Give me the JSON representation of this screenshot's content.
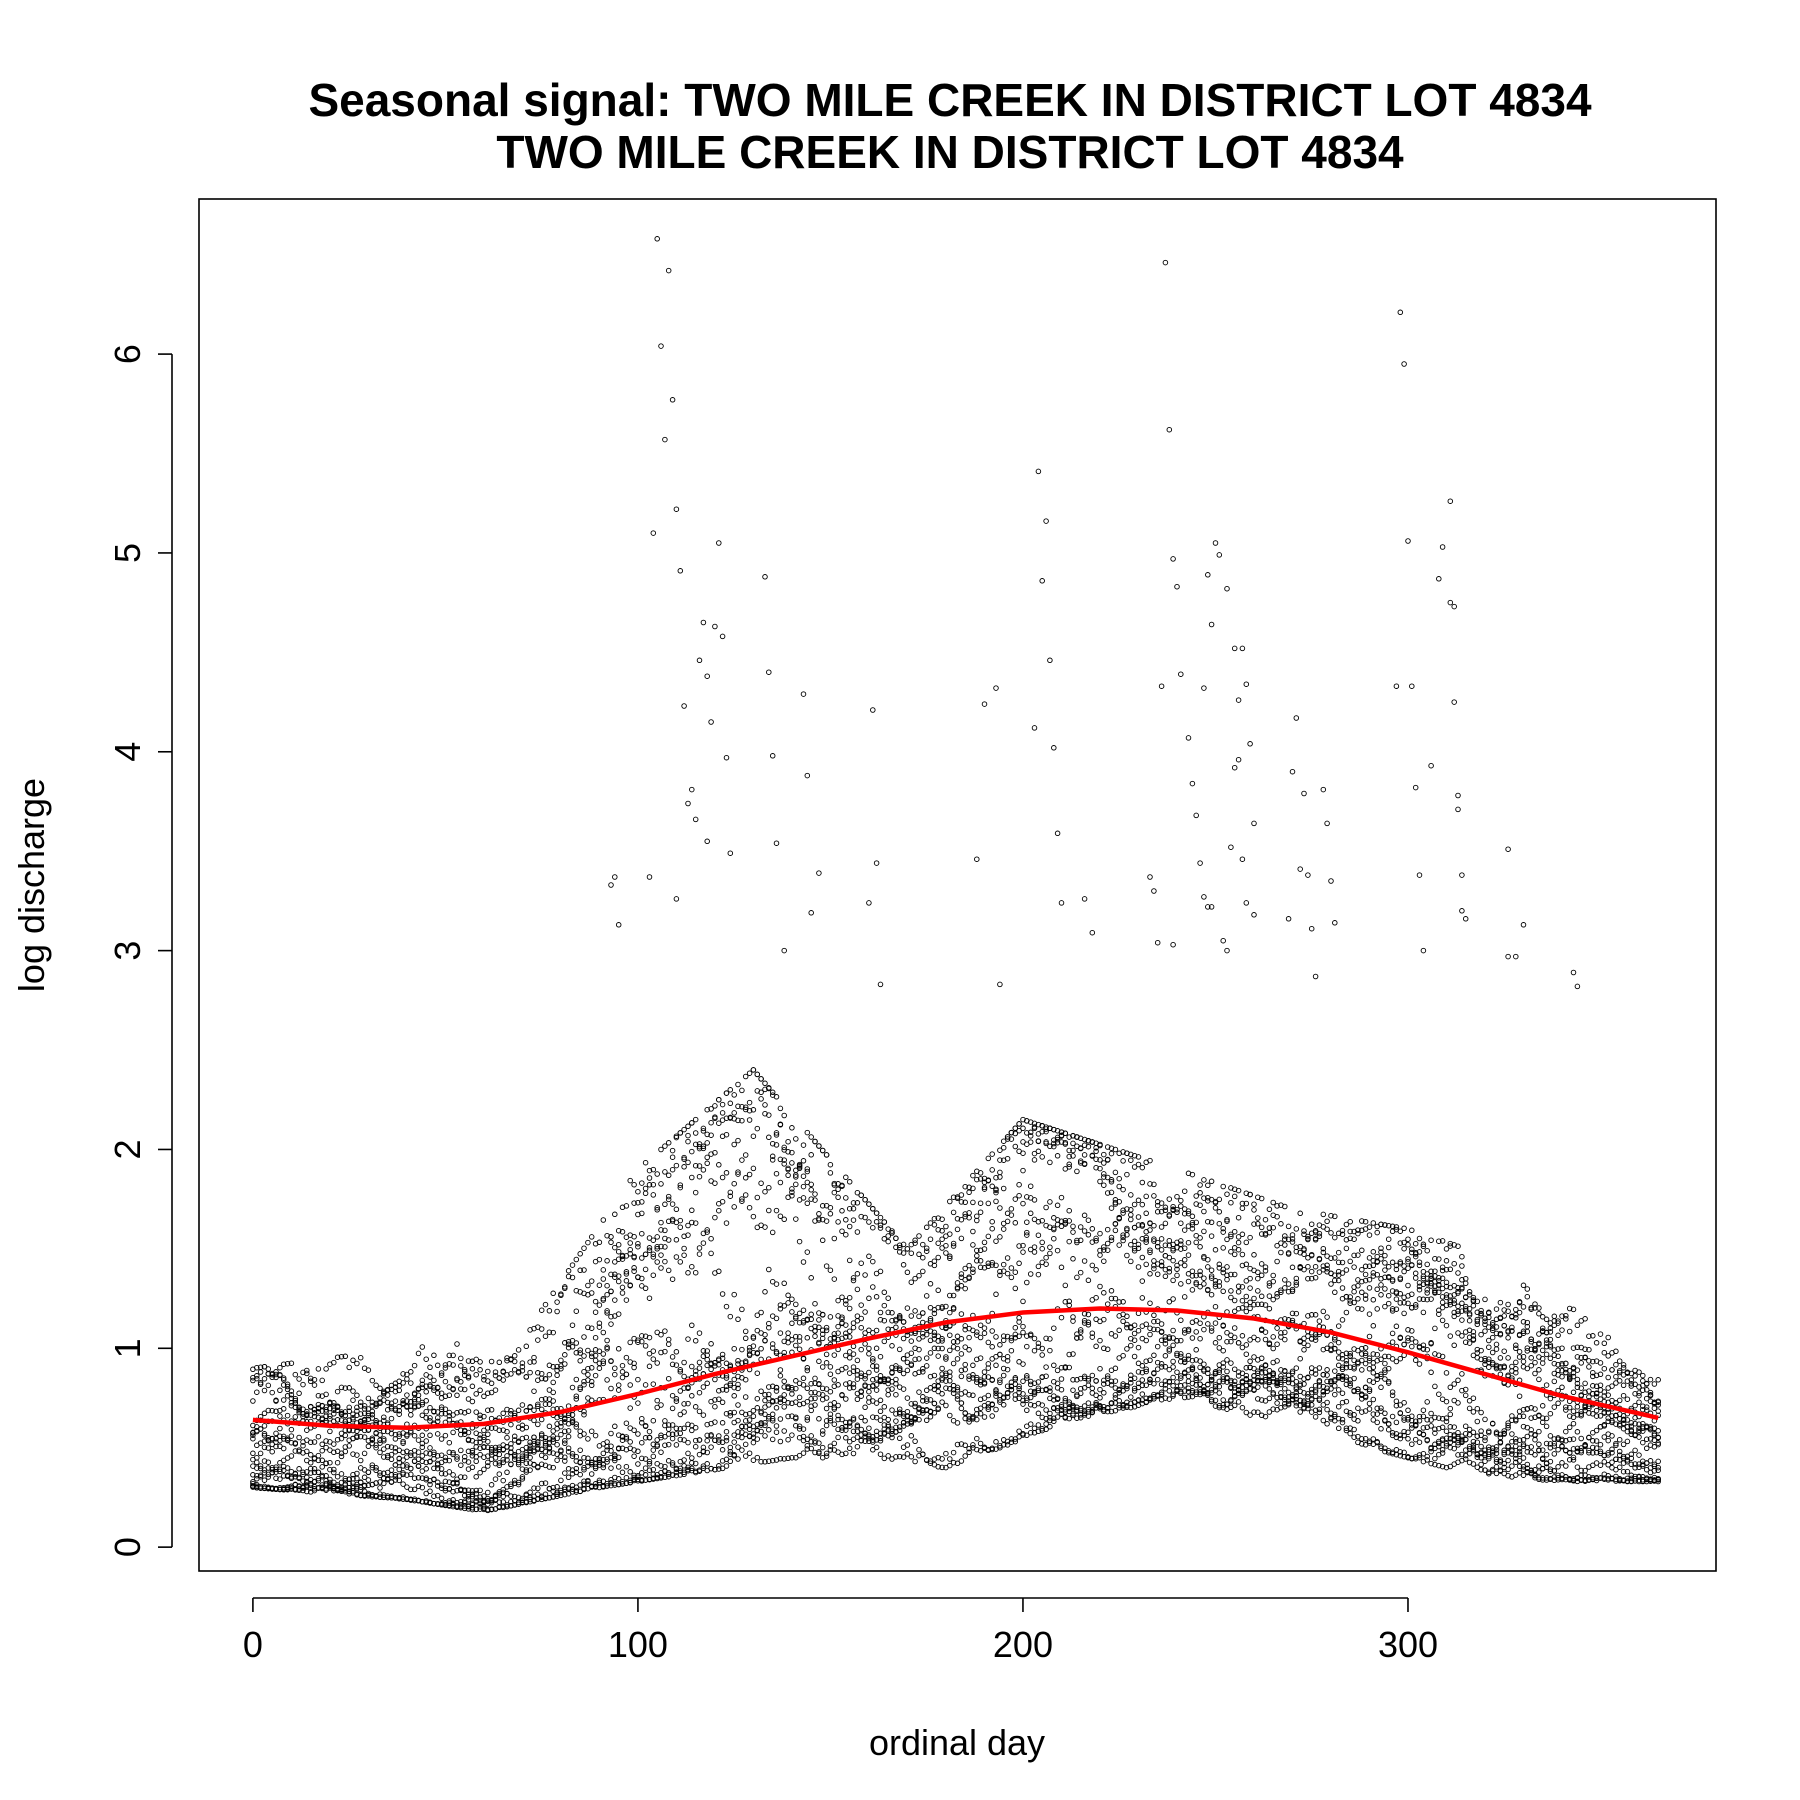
{
  "chart_data": {
    "type": "scatter",
    "title_line1": "Seasonal signal: TWO MILE CREEK IN DISTRICT LOT 4834",
    "title_line2": "TWO MILE CREEK IN DISTRICT LOT 4834",
    "xlabel": "ordinal day",
    "ylabel": "log discharge",
    "xlim": [
      -14,
      380
    ],
    "ylim": [
      -0.12,
      6.78
    ],
    "x_ticks": [
      0,
      100,
      200,
      300
    ],
    "y_ticks": [
      0,
      1,
      2,
      3,
      4,
      5,
      6
    ],
    "grid": false,
    "legend": "none",
    "series": [
      {
        "kind": "points",
        "color": "#000000",
        "note_years_approx": 18,
        "outliers": [
          {
            "x": 105,
            "y": 6.58
          },
          {
            "x": 108,
            "y": 6.42
          },
          {
            "x": 106,
            "y": 6.04
          },
          {
            "x": 109,
            "y": 5.77
          },
          {
            "x": 107,
            "y": 5.57
          },
          {
            "x": 110,
            "y": 5.22
          },
          {
            "x": 104,
            "y": 5.1
          },
          {
            "x": 121,
            "y": 5.05
          },
          {
            "x": 111,
            "y": 4.91
          },
          {
            "x": 133,
            "y": 4.88
          },
          {
            "x": 117,
            "y": 4.65
          },
          {
            "x": 120,
            "y": 4.63
          },
          {
            "x": 122,
            "y": 4.58
          },
          {
            "x": 116,
            "y": 4.46
          },
          {
            "x": 134,
            "y": 4.4
          },
          {
            "x": 118,
            "y": 4.38
          },
          {
            "x": 143,
            "y": 4.29
          },
          {
            "x": 112,
            "y": 4.23
          },
          {
            "x": 119,
            "y": 4.15
          },
          {
            "x": 123,
            "y": 3.97
          },
          {
            "x": 135,
            "y": 3.98
          },
          {
            "x": 144,
            "y": 3.88
          },
          {
            "x": 114,
            "y": 3.81
          },
          {
            "x": 113,
            "y": 3.74
          },
          {
            "x": 115,
            "y": 3.66
          },
          {
            "x": 118,
            "y": 3.55
          },
          {
            "x": 136,
            "y": 3.54
          },
          {
            "x": 124,
            "y": 3.49
          },
          {
            "x": 147,
            "y": 3.39
          },
          {
            "x": 94,
            "y": 3.37
          },
          {
            "x": 93,
            "y": 3.33
          },
          {
            "x": 103,
            "y": 3.37
          },
          {
            "x": 110,
            "y": 3.26
          },
          {
            "x": 145,
            "y": 3.19
          },
          {
            "x": 95,
            "y": 3.13
          },
          {
            "x": 138,
            "y": 3.0
          },
          {
            "x": 237,
            "y": 6.46
          },
          {
            "x": 298,
            "y": 6.21
          },
          {
            "x": 299,
            "y": 5.95
          },
          {
            "x": 238,
            "y": 5.62
          },
          {
            "x": 204,
            "y": 5.41
          },
          {
            "x": 311,
            "y": 5.26
          },
          {
            "x": 206,
            "y": 5.16
          },
          {
            "x": 300,
            "y": 5.06
          },
          {
            "x": 250,
            "y": 5.05
          },
          {
            "x": 239,
            "y": 4.97
          },
          {
            "x": 309,
            "y": 5.03
          },
          {
            "x": 251,
            "y": 4.99
          },
          {
            "x": 248,
            "y": 4.89
          },
          {
            "x": 205,
            "y": 4.86
          },
          {
            "x": 308,
            "y": 4.87
          },
          {
            "x": 240,
            "y": 4.83
          },
          {
            "x": 253,
            "y": 4.82
          },
          {
            "x": 311,
            "y": 4.75
          },
          {
            "x": 312,
            "y": 4.73
          },
          {
            "x": 249,
            "y": 4.64
          },
          {
            "x": 255,
            "y": 4.52
          },
          {
            "x": 257,
            "y": 4.52
          },
          {
            "x": 207,
            "y": 4.46
          },
          {
            "x": 241,
            "y": 4.39
          },
          {
            "x": 297,
            "y": 4.33
          },
          {
            "x": 301,
            "y": 4.33
          },
          {
            "x": 236,
            "y": 4.33
          },
          {
            "x": 258,
            "y": 4.34
          },
          {
            "x": 247,
            "y": 4.32
          },
          {
            "x": 193,
            "y": 4.32
          },
          {
            "x": 312,
            "y": 4.25
          },
          {
            "x": 256,
            "y": 4.26
          },
          {
            "x": 190,
            "y": 4.24
          },
          {
            "x": 161,
            "y": 4.21
          },
          {
            "x": 203,
            "y": 4.12
          },
          {
            "x": 243,
            "y": 4.07
          },
          {
            "x": 259,
            "y": 4.04
          },
          {
            "x": 208,
            "y": 4.02
          },
          {
            "x": 256,
            "y": 3.96
          },
          {
            "x": 306,
            "y": 3.93
          },
          {
            "x": 255,
            "y": 3.92
          },
          {
            "x": 270,
            "y": 3.9
          },
          {
            "x": 271,
            "y": 4.17
          },
          {
            "x": 244,
            "y": 3.84
          },
          {
            "x": 302,
            "y": 3.82
          },
          {
            "x": 278,
            "y": 3.81
          },
          {
            "x": 273,
            "y": 3.79
          },
          {
            "x": 313,
            "y": 3.78
          },
          {
            "x": 313,
            "y": 3.71
          },
          {
            "x": 245,
            "y": 3.68
          },
          {
            "x": 279,
            "y": 3.64
          },
          {
            "x": 260,
            "y": 3.64
          },
          {
            "x": 209,
            "y": 3.59
          },
          {
            "x": 254,
            "y": 3.52
          },
          {
            "x": 326,
            "y": 3.51
          },
          {
            "x": 257,
            "y": 3.46
          },
          {
            "x": 188,
            "y": 3.46
          },
          {
            "x": 162,
            "y": 3.44
          },
          {
            "x": 246,
            "y": 3.44
          },
          {
            "x": 272,
            "y": 3.41
          },
          {
            "x": 274,
            "y": 3.38
          },
          {
            "x": 303,
            "y": 3.38
          },
          {
            "x": 314,
            "y": 3.38
          },
          {
            "x": 233,
            "y": 3.37
          },
          {
            "x": 280,
            "y": 3.35
          },
          {
            "x": 234,
            "y": 3.3
          },
          {
            "x": 247,
            "y": 3.27
          },
          {
            "x": 216,
            "y": 3.26
          },
          {
            "x": 258,
            "y": 3.24
          },
          {
            "x": 160,
            "y": 3.24
          },
          {
            "x": 210,
            "y": 3.24
          },
          {
            "x": 249,
            "y": 3.22
          },
          {
            "x": 248,
            "y": 3.22
          },
          {
            "x": 314,
            "y": 3.2
          },
          {
            "x": 260,
            "y": 3.18
          },
          {
            "x": 269,
            "y": 3.16
          },
          {
            "x": 315,
            "y": 3.16
          },
          {
            "x": 281,
            "y": 3.14
          },
          {
            "x": 330,
            "y": 3.13
          },
          {
            "x": 275,
            "y": 3.11
          },
          {
            "x": 218,
            "y": 3.09
          },
          {
            "x": 235,
            "y": 3.04
          },
          {
            "x": 252,
            "y": 3.05
          },
          {
            "x": 239,
            "y": 3.03
          },
          {
            "x": 253,
            "y": 3.0
          },
          {
            "x": 304,
            "y": 3.0
          },
          {
            "x": 326,
            "y": 2.97
          },
          {
            "x": 328,
            "y": 2.97
          },
          {
            "x": 343,
            "y": 2.89
          },
          {
            "x": 344,
            "y": 2.82
          },
          {
            "x": 276,
            "y": 2.87
          },
          {
            "x": 163,
            "y": 2.83
          },
          {
            "x": 194,
            "y": 2.83
          }
        ],
        "bands": [
          {
            "x_from": 0,
            "x_to": 365,
            "y_lo_anchors": [
              [
                0,
                0.3
              ],
              [
                40,
                0.24
              ],
              [
                60,
                0.18
              ],
              [
                90,
                0.3
              ],
              [
                140,
                0.45
              ],
              [
                180,
                0.4
              ],
              [
                215,
                0.65
              ],
              [
                240,
                0.75
              ],
              [
                280,
                0.55
              ],
              [
                320,
                0.35
              ],
              [
                345,
                0.33
              ],
              [
                365,
                0.33
              ]
            ],
            "y_hi_anchors": [
              [
                0,
                0.9
              ],
              [
                40,
                1.0
              ],
              [
                70,
                1.05
              ],
              [
                100,
                1.9
              ],
              [
                130,
                2.4
              ],
              [
                170,
                1.5
              ],
              [
                200,
                2.15
              ],
              [
                240,
                1.9
              ],
              [
                270,
                1.7
              ],
              [
                300,
                1.6
              ],
              [
                330,
                1.4
              ],
              [
                365,
                0.85
              ]
            ]
          }
        ]
      },
      {
        "kind": "smooth",
        "name": "",
        "color": "#ff0000",
        "x": [
          0,
          20,
          40,
          60,
          80,
          100,
          120,
          140,
          160,
          180,
          200,
          220,
          240,
          260,
          280,
          300,
          320,
          340,
          365
        ],
        "y": [
          0.64,
          0.61,
          0.6,
          0.62,
          0.68,
          0.77,
          0.87,
          0.96,
          1.05,
          1.13,
          1.18,
          1.2,
          1.19,
          1.15,
          1.08,
          0.98,
          0.87,
          0.76,
          0.65
        ]
      }
    ]
  }
}
